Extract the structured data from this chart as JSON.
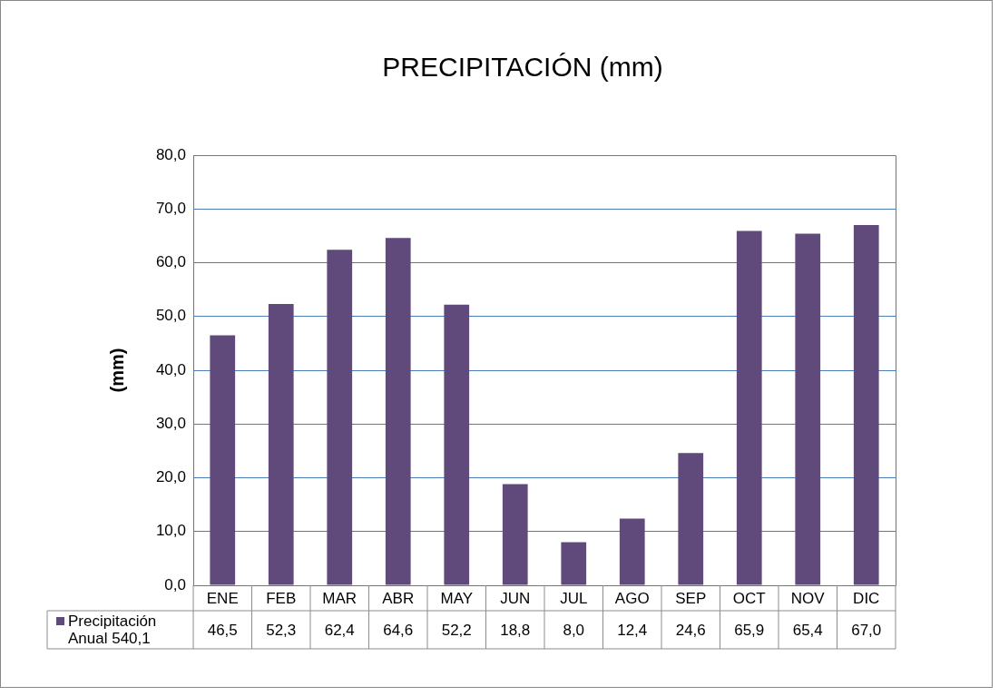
{
  "chart_data": {
    "type": "bar",
    "title": "PRECIPITACIÓN (mm)",
    "ylabel": "(mm)",
    "categories": [
      "ENE",
      "FEB",
      "MAR",
      "ABR",
      "MAY",
      "JUN",
      "JUL",
      "AGO",
      "SEP",
      "OCT",
      "NOV",
      "DIC"
    ],
    "series": [
      {
        "name": "Precipitación Anual 540,1",
        "color": "#604a7b",
        "values": [
          46.5,
          52.3,
          62.4,
          64.6,
          52.2,
          18.8,
          8.0,
          12.4,
          24.6,
          65.9,
          65.4,
          67.0
        ],
        "value_labels": [
          "46,5",
          "52,3",
          "62,4",
          "64,6",
          "52,2",
          "18,8",
          "8,0",
          "12,4",
          "24,6",
          "65,9",
          "65,4",
          "67,0"
        ]
      }
    ],
    "ylim": [
      0,
      80
    ],
    "yticks": [
      {
        "value": 0,
        "label": "0,0"
      },
      {
        "value": 10,
        "label": "10,0"
      },
      {
        "value": 20,
        "label": "20,0"
      },
      {
        "value": 30,
        "label": "30,0"
      },
      {
        "value": 40,
        "label": "40,0"
      },
      {
        "value": 50,
        "label": "50,0"
      },
      {
        "value": 60,
        "label": "60,0"
      },
      {
        "value": 70,
        "label": "70,0"
      },
      {
        "value": 80,
        "label": "80,0"
      }
    ],
    "grid": "y"
  }
}
